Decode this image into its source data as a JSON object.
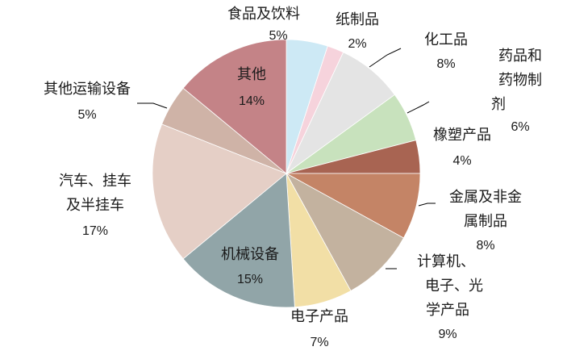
{
  "chart_data": {
    "type": "pie",
    "start": "top",
    "direction": "clockwise",
    "slices": [
      {
        "label": "食品及饮料",
        "value": 5,
        "pct_label": "5%",
        "color": "#cde9f5"
      },
      {
        "label": "纸制品",
        "value": 2,
        "pct_label": "2%",
        "color": "#f6d3dc"
      },
      {
        "label": "化工品",
        "value": 8,
        "pct_label": "8%",
        "color": "#e4e4e4"
      },
      {
        "label": "药品和药物制剂",
        "lines": [
          "药品和",
          "药物制",
          "剂"
        ],
        "value": 6,
        "pct_label": "6%",
        "color": "#c8e2bd"
      },
      {
        "label": "橡塑产品",
        "value": 4,
        "pct_label": "4%",
        "color": "#a86452"
      },
      {
        "label": "金属及非金属制品",
        "lines": [
          "金属及非金",
          "属制品"
        ],
        "value": 8,
        "pct_label": "8%",
        "color": "#c48466"
      },
      {
        "label": "计算机、电子、光学产品",
        "lines": [
          "计算机、",
          "电子、光",
          "学产品"
        ],
        "value": 9,
        "pct_label": "9%",
        "color": "#c3b29f"
      },
      {
        "label": "电子产品",
        "value": 7,
        "pct_label": "7%",
        "color": "#f2dfa6"
      },
      {
        "label": "机械设备",
        "value": 15,
        "pct_label": "15%",
        "color": "#91a5a8"
      },
      {
        "label": "汽车、挂车及半挂车",
        "lines": [
          "汽车、挂车",
          "及半挂车"
        ],
        "value": 17,
        "pct_label": "17%",
        "color": "#e5cfc6"
      },
      {
        "label": "其他运输设备",
        "value": 5,
        "pct_label": "5%",
        "color": "#cfb3a7"
      },
      {
        "label": "其他",
        "value": 14,
        "pct_label": "14%",
        "color": "#c48387"
      }
    ]
  }
}
